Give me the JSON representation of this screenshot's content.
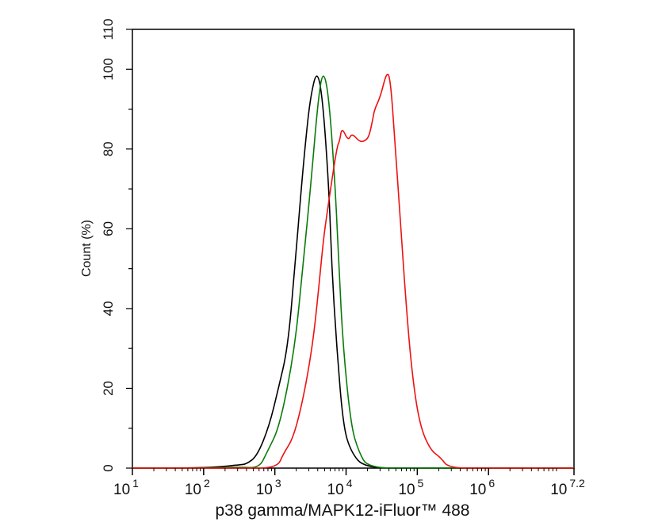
{
  "chart_data": {
    "type": "line",
    "title": "",
    "xlabel": "p38 gamma/MAPK12-iFluor™ 488",
    "ylabel": "Count  (%)",
    "xscale": "log10",
    "xlim_log10": [
      1,
      7.2
    ],
    "ylim": [
      0,
      110
    ],
    "x_ticks": [
      {
        "base": "10",
        "exp": "1",
        "v": 1
      },
      {
        "base": "10",
        "exp": "2",
        "v": 2
      },
      {
        "base": "10",
        "exp": "3",
        "v": 3
      },
      {
        "base": "10",
        "exp": "4",
        "v": 4
      },
      {
        "base": "10",
        "exp": "5",
        "v": 5
      },
      {
        "base": "10",
        "exp": "6",
        "v": 6
      },
      {
        "base": "10",
        "exp": "7.2",
        "v": 7.2
      }
    ],
    "y_ticks": [
      "0",
      "20",
      "40",
      "60",
      "80",
      "100",
      "110"
    ],
    "grid": false,
    "series": [
      {
        "name": "black",
        "color": "#000000",
        "log10x": [
          1.0,
          1.8,
          2.2,
          2.5,
          2.6,
          2.75,
          2.92,
          3.05,
          3.18,
          3.28,
          3.37,
          3.44,
          3.5,
          3.59,
          3.67,
          3.76,
          3.8,
          3.87,
          3.96,
          4.07,
          4.26,
          5.0,
          7.2
        ],
        "y": [
          0,
          0,
          0.3,
          0.8,
          1,
          3,
          10.5,
          20,
          30,
          50,
          70,
          83.5,
          93,
          100,
          93,
          70,
          50,
          30,
          10.5,
          4,
          0,
          0,
          0
        ]
      },
      {
        "name": "green",
        "color": "#0a7a0a",
        "log10x": [
          1.0,
          2.0,
          2.5,
          2.78,
          2.89,
          3.07,
          3.28,
          3.39,
          3.5,
          3.61,
          3.68,
          3.76,
          3.85,
          3.9,
          3.96,
          4.07,
          4.18,
          4.31,
          5.0,
          7.2
        ],
        "y": [
          0,
          0,
          0.3,
          0,
          4,
          10.5,
          30,
          50,
          70,
          93,
          100,
          93,
          70,
          50,
          30,
          10.5,
          4,
          0,
          0,
          0
        ]
      },
      {
        "name": "red",
        "color": "#ee1111",
        "log10x": [
          1.0,
          2.5,
          3.03,
          3.12,
          3.26,
          3.4,
          3.53,
          3.61,
          3.68,
          3.73,
          3.87,
          3.91,
          3.94,
          4.03,
          4.08,
          4.19,
          4.26,
          4.32,
          4.37,
          4.4,
          4.48,
          4.58,
          4.63,
          4.68,
          4.76,
          4.83,
          4.92,
          5.03,
          5.18,
          5.33,
          5.44,
          6.0,
          7.2
        ],
        "y": [
          0,
          0,
          0,
          3.6,
          7.6,
          17.5,
          30.8,
          44,
          57,
          63.6,
          80.5,
          82,
          85.5,
          82,
          84,
          81.8,
          82,
          83,
          87,
          90,
          93,
          100,
          96,
          83,
          63,
          44,
          24.5,
          11,
          4.6,
          2.6,
          0,
          0,
          0
        ]
      }
    ]
  }
}
